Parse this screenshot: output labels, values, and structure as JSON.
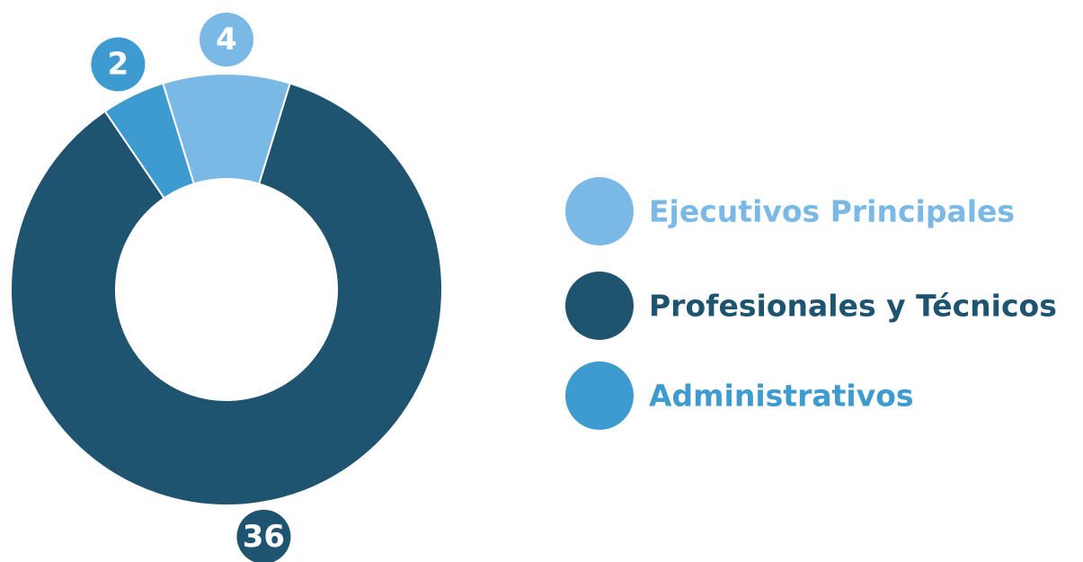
{
  "chart_data": {
    "type": "donut",
    "categories": [
      "Ejecutivos Principales",
      "Profesionales y Técnicos",
      "Administrativos"
    ],
    "values": [
      4,
      36,
      2
    ],
    "colors": [
      "#7ab9e6",
      "#1f5470",
      "#3d9bd0"
    ]
  }
}
